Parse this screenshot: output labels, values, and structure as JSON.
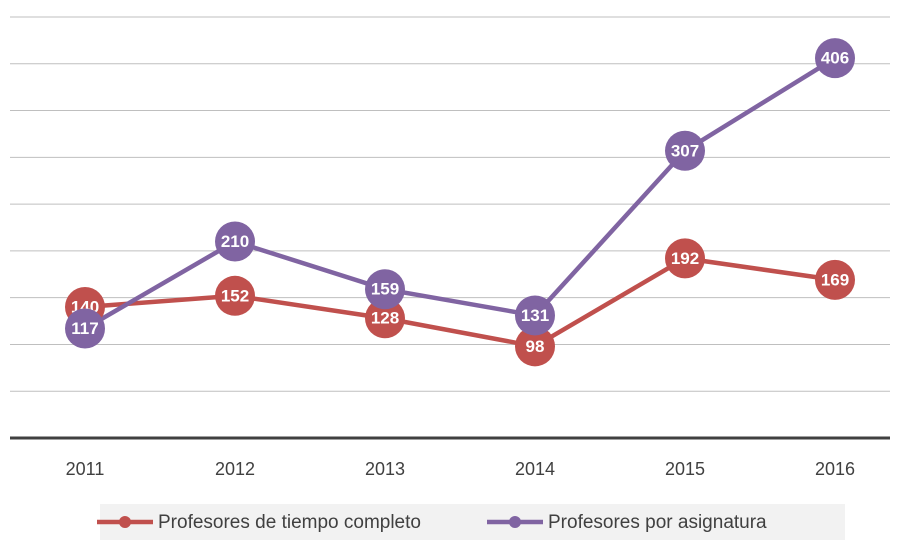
{
  "chart_data": {
    "type": "line",
    "categories": [
      "2011",
      "2012",
      "2013",
      "2014",
      "2015",
      "2016"
    ],
    "series": [
      {
        "name": "Profesores de tiempo completo",
        "color": "#c0504d",
        "values": [
          140,
          152,
          128,
          98,
          192,
          169
        ]
      },
      {
        "name": "Profesores por asignatura",
        "color": "#8064a2",
        "values": [
          117,
          210,
          159,
          131,
          307,
          406
        ]
      }
    ],
    "ylim": [
      0,
      450
    ],
    "yticks": [
      0,
      50,
      100,
      150,
      200,
      250,
      300,
      350,
      400,
      450
    ],
    "grid": true,
    "legend": "bottom"
  }
}
